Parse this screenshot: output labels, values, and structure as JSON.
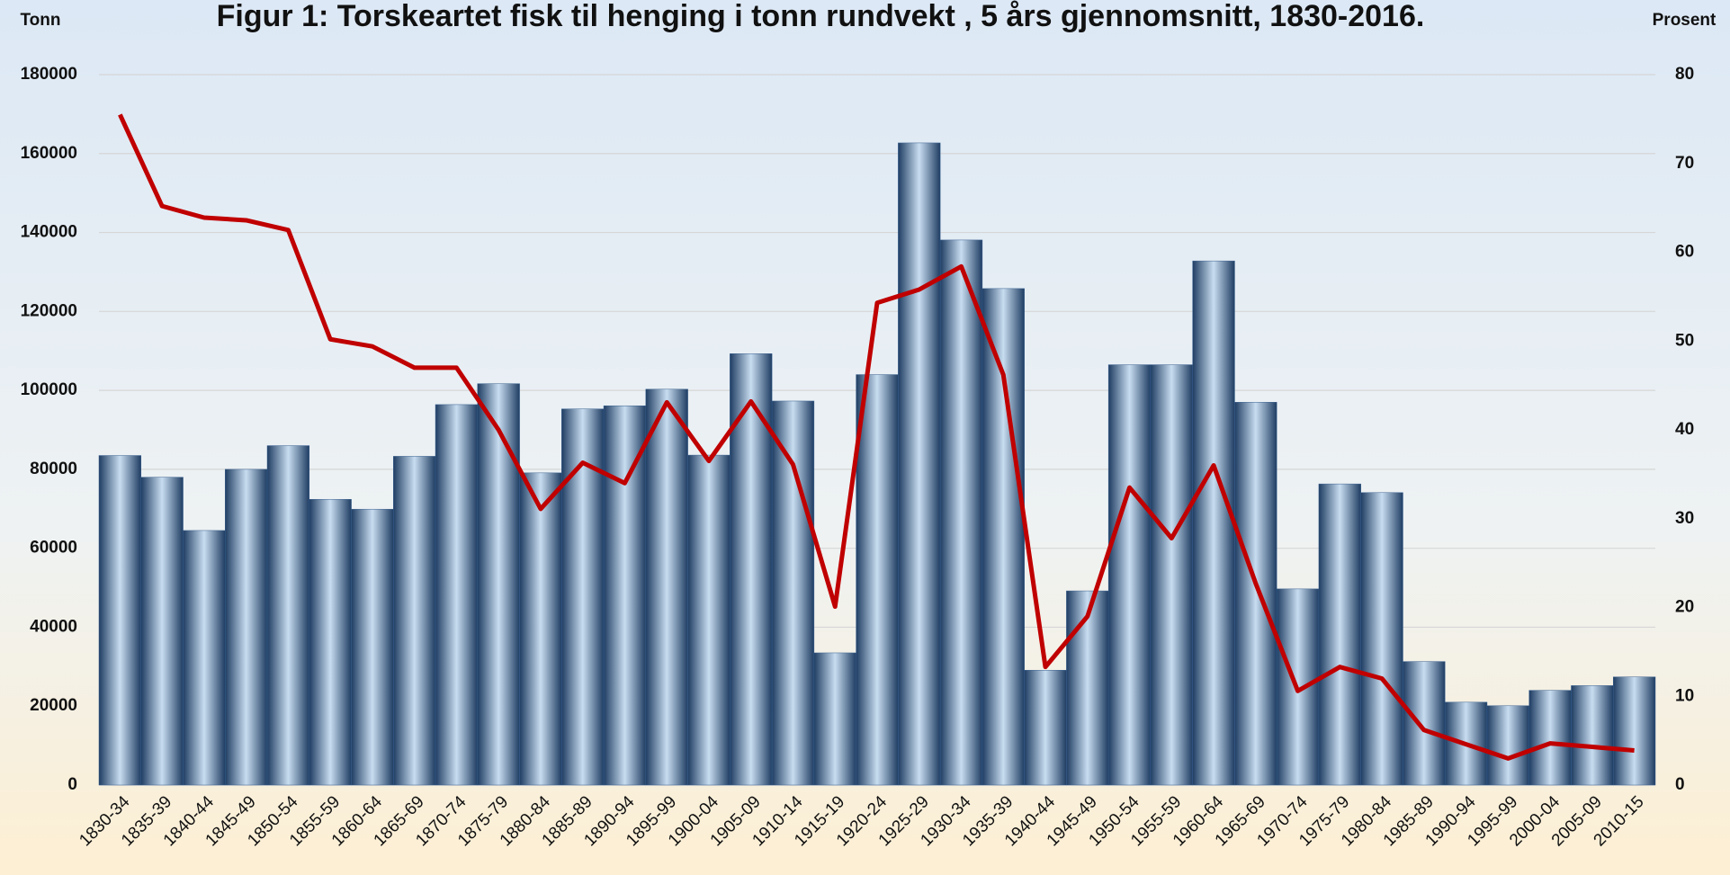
{
  "chart_data": {
    "type": "bar_line",
    "title": "Figur 1: Torskeartet fisk til henging i tonn rundvekt , 5 års gjennomsnitt, 1830-2016.",
    "y_label": "Tonn",
    "y2_label": "Prosent",
    "categories": [
      "1830-34",
      "1835-39",
      "1840-44",
      "1845-49",
      "1850-54",
      "1855-59",
      "1860-64",
      "1865-69",
      "1870-74",
      "1875-79",
      "1880-84",
      "1885-89",
      "1890-94",
      "1895-99",
      "1900-04",
      "1905-09",
      "1910-14",
      "1915-19",
      "1920-24",
      "1925-29",
      "1930-34",
      "1935-39",
      "1940-44",
      "1945-49",
      "1950-54",
      "1955-59",
      "1960-64",
      "1965-69",
      "1970-74",
      "1975-79",
      "1980-84",
      "1985-89",
      "1990-94",
      "1995-99",
      "2000-04",
      "2005-09",
      "2010-15"
    ],
    "series": [
      {
        "color": "#3a6190",
        "values": [
          83500,
          78000,
          64500,
          80000,
          86000,
          72400,
          69900,
          83300,
          96400,
          101700,
          79100,
          95300,
          96100,
          100300,
          83600,
          109300,
          97300,
          33500,
          104000,
          162700,
          138100,
          125800,
          29100,
          49200,
          106500,
          106500,
          132800,
          97000,
          49700,
          76300,
          74100,
          31300,
          21000,
          20100,
          24000,
          25200,
          27400
        ]
      },
      {
        "color": "#c00000",
        "axis": "y2",
        "values": [
          75.5,
          65.2,
          63.9,
          63.6,
          62.5,
          50.2,
          49.4,
          47.0,
          47.0,
          40.0,
          31.1,
          36.3,
          34.0,
          43.1,
          36.5,
          43.2,
          36.1,
          20.1,
          54.3,
          55.8,
          58.4,
          46.2,
          13.3,
          19.0,
          33.5,
          27.8,
          36.0,
          22.7,
          10.6,
          13.3,
          12.0,
          6.2,
          4.6,
          3.0,
          4.7,
          4.3,
          3.9
        ]
      }
    ],
    "ylim": [
      0,
      180000
    ],
    "yticks": [
      0,
      20000,
      40000,
      60000,
      80000,
      100000,
      120000,
      140000,
      160000,
      180000
    ],
    "y2lim": [
      0,
      80
    ],
    "y2ticks": [
      0,
      10,
      20,
      30,
      40,
      50,
      60,
      70,
      80
    ],
    "grid": true
  }
}
